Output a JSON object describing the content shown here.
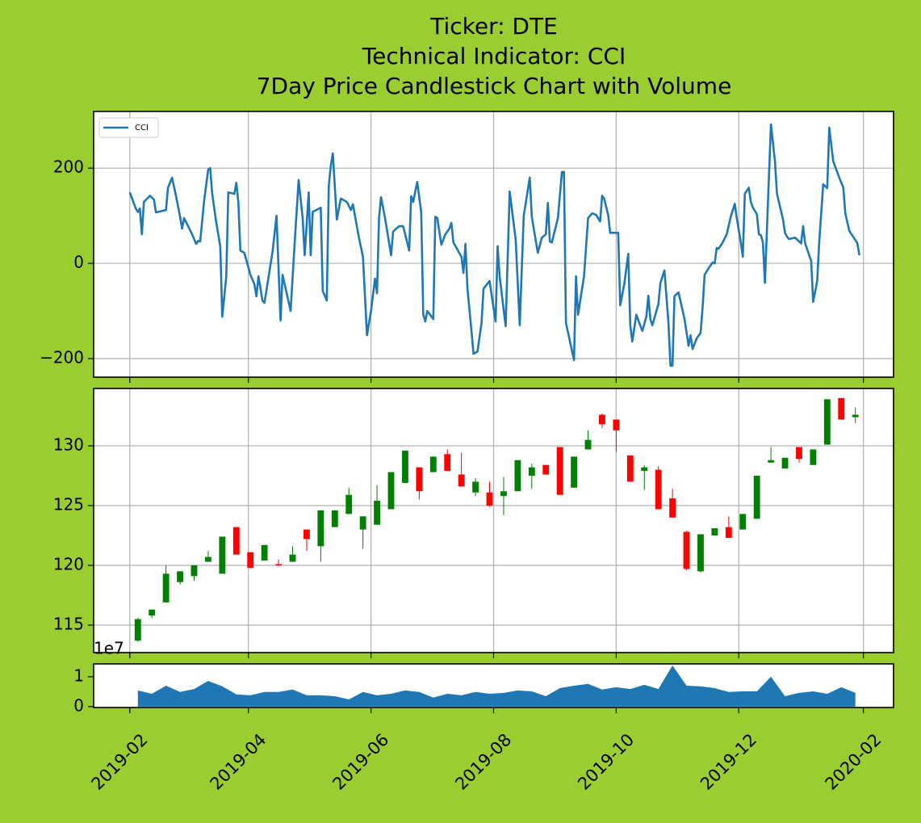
{
  "chart_data": [
    {
      "type": "line",
      "title": "Ticker: DTE\nTechnical Indicator: CCI\n7Day Price Candlestick Chart with Volume",
      "x": [
        "2019-02-01",
        "2019-02-04",
        "2019-02-05",
        "2019-02-06",
        "2019-02-07",
        "2019-02-08",
        "2019-02-11",
        "2019-02-13",
        "2019-02-14",
        "2019-02-19",
        "2019-02-20",
        "2019-02-22",
        "2019-02-24",
        "2019-02-26",
        "2019-02-27",
        "2019-02-28",
        "2019-03-02",
        "2019-03-04",
        "2019-03-06",
        "2019-03-07",
        "2019-03-08",
        "2019-03-10",
        "2019-03-12",
        "2019-03-13",
        "2019-03-14",
        "2019-03-16",
        "2019-03-18",
        "2019-03-19",
        "2019-03-21",
        "2019-03-22",
        "2019-03-25",
        "2019-03-26",
        "2019-03-27",
        "2019-03-28",
        "2019-03-30",
        "2019-04-02",
        "2019-04-04",
        "2019-04-05",
        "2019-04-06",
        "2019-04-08",
        "2019-04-09",
        "2019-04-13",
        "2019-04-15",
        "2019-04-17",
        "2019-04-18",
        "2019-04-22",
        "2019-04-24",
        "2019-04-26",
        "2019-04-28",
        "2019-04-29",
        "2019-05-01",
        "2019-05-02",
        "2019-05-03",
        "2019-05-07",
        "2019-05-08",
        "2019-05-10",
        "2019-05-11",
        "2019-05-12",
        "2019-05-13",
        "2019-05-15",
        "2019-05-17",
        "2019-05-20",
        "2019-05-22",
        "2019-05-23",
        "2019-05-26",
        "2019-05-28",
        "2019-05-30",
        "2019-06-01",
        "2019-06-03",
        "2019-06-04",
        "2019-06-05",
        "2019-06-06",
        "2019-06-08",
        "2019-06-11",
        "2019-06-12",
        "2019-06-13",
        "2019-06-15",
        "2019-06-17",
        "2019-06-20",
        "2019-06-21",
        "2019-06-22",
        "2019-06-24",
        "2019-06-26",
        "2019-06-27",
        "2019-06-28",
        "2019-06-29",
        "2019-07-02",
        "2019-07-03",
        "2019-07-04",
        "2019-07-06",
        "2019-07-08",
        "2019-07-10",
        "2019-07-11",
        "2019-07-12",
        "2019-07-16",
        "2019-07-17",
        "2019-07-18",
        "2019-07-19",
        "2019-07-21",
        "2019-07-22",
        "2019-07-24",
        "2019-07-26",
        "2019-07-27",
        "2019-07-30",
        "2019-08-02",
        "2019-08-03",
        "2019-08-04",
        "2019-08-07",
        "2019-08-09",
        "2019-08-12",
        "2019-08-14",
        "2019-08-16",
        "2019-08-19",
        "2019-08-20",
        "2019-08-23",
        "2019-08-25",
        "2019-08-27",
        "2019-08-28",
        "2019-08-29",
        "2019-08-30",
        "2019-09-02",
        "2019-09-04",
        "2019-09-05",
        "2019-09-06",
        "2019-09-10",
        "2019-09-11",
        "2019-09-12",
        "2019-09-15",
        "2019-09-17",
        "2019-09-19",
        "2019-09-21",
        "2019-09-23",
        "2019-09-24",
        "2019-09-25",
        "2019-09-27",
        "2019-09-28",
        "2019-10-02",
        "2019-10-03",
        "2019-10-05",
        "2019-10-07",
        "2019-10-08",
        "2019-10-09",
        "2019-10-11",
        "2019-10-14",
        "2019-10-16",
        "2019-10-17",
        "2019-10-18",
        "2019-10-19",
        "2019-10-22",
        "2019-10-23",
        "2019-10-25",
        "2019-10-27",
        "2019-10-28",
        "2019-10-29",
        "2019-10-30",
        "2019-11-01",
        "2019-11-04",
        "2019-11-06",
        "2019-11-07",
        "2019-11-08",
        "2019-11-10",
        "2019-11-12",
        "2019-11-13",
        "2019-11-14",
        "2019-11-16",
        "2019-11-18",
        "2019-11-19",
        "2019-11-20",
        "2019-11-21",
        "2019-11-23",
        "2019-11-25",
        "2019-11-27",
        "2019-11-29",
        "2019-11-30",
        "2019-12-02",
        "2019-12-03",
        "2019-12-04",
        "2019-12-06",
        "2019-12-07",
        "2019-12-08",
        "2019-12-10",
        "2019-12-11",
        "2019-12-12",
        "2019-12-13",
        "2019-12-14",
        "2019-12-16",
        "2019-12-17",
        "2019-12-19",
        "2019-12-20",
        "2019-12-23",
        "2019-12-24",
        "2019-12-25",
        "2019-12-26",
        "2019-12-29",
        "2020-01-01",
        "2020-01-02",
        "2020-01-03",
        "2020-01-06",
        "2020-01-07",
        "2020-01-09",
        "2020-01-10",
        "2020-01-12",
        "2020-01-14",
        "2020-01-15",
        "2020-01-17",
        "2020-01-20",
        "2020-01-22",
        "2020-01-23",
        "2020-01-25",
        "2020-01-28",
        "2020-01-29",
        "2020-01-30"
      ],
      "series": [
        {
          "name": "CCI",
          "color": "#1f77b4",
          "values": [
            149,
            115,
            108,
            115,
            61,
            129,
            142,
            134,
            107,
            112,
            159,
            180,
            141,
            98,
            73,
            95,
            78,
            61,
            41,
            47,
            46,
            132,
            197,
            200,
            146,
            86,
            36,
            -112,
            -27,
            149,
            146,
            169,
            129,
            27,
            22,
            -24,
            -44,
            -69,
            -27,
            -78,
            -83,
            24,
            100,
            -120,
            -24,
            -100,
            41,
            175,
            95,
            17,
            149,
            17,
            108,
            117,
            -58,
            -78,
            163,
            205,
            231,
            92,
            136,
            129,
            112,
            124,
            54,
            14,
            -151,
            -100,
            -32,
            -63,
            95,
            139,
            95,
            17,
            66,
            71,
            78,
            78,
            27,
            141,
            129,
            171,
            107,
            -107,
            -122,
            -100,
            -117,
            98,
            95,
            39,
            61,
            73,
            85,
            44,
            14,
            -20,
            41,
            -53,
            -142,
            -190,
            -185,
            -125,
            -53,
            -37,
            -122,
            36,
            -27,
            -132,
            151,
            49,
            -130,
            100,
            180,
            98,
            22,
            54,
            61,
            127,
            46,
            44,
            95,
            192,
            192,
            -125,
            -203,
            -27,
            -108,
            -27,
            95,
            105,
            102,
            88,
            142,
            136,
            102,
            64,
            64,
            -88,
            -44,
            20,
            -130,
            -164,
            -108,
            -142,
            -112,
            -68,
            -117,
            -130,
            -85,
            -41,
            -15,
            -125,
            -215,
            -215,
            -69,
            -61,
            -117,
            -173,
            -151,
            -180,
            -158,
            -146,
            -92,
            -24,
            -10,
            2,
            0,
            32,
            31,
            44,
            61,
            98,
            125,
            95,
            44,
            14,
            146,
            159,
            129,
            117,
            103,
            61,
            59,
            44,
            -41,
            183,
            292,
            214,
            146,
            92,
            64,
            56,
            51,
            54,
            42,
            78,
            42,
            5,
            -81,
            -37,
            44,
            166,
            158,
            285,
            214,
            180,
            159,
            105,
            68,
            49,
            42,
            17
          ]
        }
      ],
      "xlim": [
        "2019-01-14",
        "2020-02-16"
      ],
      "ylim": [
        -239,
        319
      ],
      "yticks": [
        {
          "value": -200,
          "label": "−200"
        },
        0,
        200
      ],
      "grid": true,
      "legend": "upper left"
    },
    {
      "type": "candlestick",
      "x": [
        "2019-02-05",
        "2019-02-12",
        "2019-02-19",
        "2019-02-26",
        "2019-03-05",
        "2019-03-12",
        "2019-03-19",
        "2019-03-26",
        "2019-04-02",
        "2019-04-09",
        "2019-04-16",
        "2019-04-23",
        "2019-04-30",
        "2019-05-07",
        "2019-05-14",
        "2019-05-21",
        "2019-05-28",
        "2019-06-04",
        "2019-06-11",
        "2019-06-18",
        "2019-06-25",
        "2019-07-02",
        "2019-07-09",
        "2019-07-16",
        "2019-07-23",
        "2019-07-30",
        "2019-08-06",
        "2019-08-13",
        "2019-08-20",
        "2019-08-27",
        "2019-09-03",
        "2019-09-10",
        "2019-09-17",
        "2019-09-24",
        "2019-10-01",
        "2019-10-08",
        "2019-10-15",
        "2019-10-22",
        "2019-10-29",
        "2019-11-05",
        "2019-11-12",
        "2019-11-19",
        "2019-11-26",
        "2019-12-03",
        "2019-12-10",
        "2019-12-17",
        "2019-12-24",
        "2019-12-31",
        "2020-01-07",
        "2020-01-14",
        "2020-01-21",
        "2020-01-28"
      ],
      "open": [
        113.7,
        115.8,
        116.9,
        118.6,
        119.1,
        120.3,
        119.3,
        123.2,
        121.1,
        120.4,
        120.1,
        120.3,
        123.0,
        121.6,
        123.2,
        124.3,
        123.0,
        123.4,
        124.7,
        126.9,
        128.2,
        127.8,
        129.3,
        127.6,
        126.1,
        126.1,
        125.8,
        126.2,
        127.5,
        128.4,
        129.9,
        126.5,
        129.7,
        132.6,
        132.2,
        129.2,
        127.9,
        128.0,
        125.6,
        122.8,
        119.5,
        122.5,
        123.2,
        123.0,
        123.9,
        128.6,
        128.1,
        129.9,
        128.4,
        130.1,
        134.0,
        132.4
      ],
      "high": [
        115.6,
        116.3,
        120.0,
        119.5,
        120.0,
        121.2,
        122.4,
        123.2,
        121.1,
        121.7,
        120.5,
        121.6,
        123.0,
        124.6,
        124.6,
        126.5,
        124.1,
        126.7,
        127.8,
        129.6,
        128.2,
        129.1,
        129.7,
        129.4,
        127.3,
        127.0,
        127.4,
        128.8,
        128.5,
        128.4,
        129.9,
        129.1,
        131.3,
        132.7,
        132.2,
        129.2,
        128.4,
        128.3,
        126.4,
        122.9,
        122.6,
        123.1,
        124.1,
        124.3,
        127.5,
        129.9,
        129.0,
        129.9,
        129.7,
        133.9,
        134.0,
        133.2
      ],
      "low": [
        113.6,
        115.6,
        116.9,
        118.4,
        118.7,
        120.3,
        119.3,
        120.9,
        119.7,
        120.4,
        119.9,
        120.3,
        121.2,
        120.3,
        123.2,
        124.3,
        121.4,
        123.4,
        124.7,
        126.9,
        125.5,
        127.8,
        127.9,
        126.6,
        125.8,
        124.9,
        124.2,
        126.2,
        126.4,
        127.6,
        125.9,
        126.5,
        129.7,
        131.5,
        129.5,
        127.0,
        126.3,
        124.7,
        124.0,
        119.6,
        119.4,
        122.5,
        122.3,
        123.0,
        123.9,
        128.6,
        128.1,
        128.6,
        128.4,
        130.1,
        132.2,
        131.9
      ],
      "close": [
        115.5,
        116.3,
        119.3,
        119.5,
        120.0,
        120.7,
        122.4,
        120.9,
        119.8,
        121.7,
        120.0,
        120.9,
        122.2,
        124.6,
        124.6,
        125.9,
        124.1,
        125.4,
        127.8,
        129.6,
        126.2,
        129.1,
        127.9,
        126.6,
        127.0,
        125.0,
        126.2,
        128.8,
        128.2,
        127.6,
        125.9,
        129.1,
        130.5,
        131.8,
        131.3,
        127.0,
        128.2,
        124.7,
        124.0,
        119.7,
        122.6,
        123.1,
        122.3,
        124.3,
        127.5,
        128.8,
        129.0,
        128.9,
        129.7,
        133.9,
        132.2,
        132.6
      ],
      "up_color": "green",
      "down_color": "red",
      "xlim": [
        "2019-01-14",
        "2020-02-16"
      ],
      "ylim": [
        112.7,
        134.8
      ],
      "yticks": [
        115,
        120,
        125,
        130
      ],
      "grid": true
    },
    {
      "type": "area",
      "x": [
        "2019-02-05",
        "2019-02-12",
        "2019-02-19",
        "2019-02-26",
        "2019-03-05",
        "2019-03-12",
        "2019-03-19",
        "2019-03-26",
        "2019-04-02",
        "2019-04-09",
        "2019-04-16",
        "2019-04-23",
        "2019-04-30",
        "2019-05-07",
        "2019-05-14",
        "2019-05-21",
        "2019-05-28",
        "2019-06-04",
        "2019-06-11",
        "2019-06-18",
        "2019-06-25",
        "2019-07-02",
        "2019-07-09",
        "2019-07-16",
        "2019-07-23",
        "2019-07-30",
        "2019-08-06",
        "2019-08-13",
        "2019-08-20",
        "2019-08-27",
        "2019-09-03",
        "2019-09-10",
        "2019-09-17",
        "2019-09-24",
        "2019-10-01",
        "2019-10-08",
        "2019-10-15",
        "2019-10-22",
        "2019-10-29",
        "2019-11-05",
        "2019-11-12",
        "2019-11-19",
        "2019-11-26",
        "2019-12-03",
        "2019-12-10",
        "2019-12-17",
        "2019-12-24",
        "2019-12-31",
        "2020-01-07",
        "2020-01-14",
        "2020-01-21",
        "2020-01-28"
      ],
      "values": [
        0.54,
        0.43,
        0.7,
        0.49,
        0.59,
        0.86,
        0.68,
        0.41,
        0.38,
        0.49,
        0.49,
        0.57,
        0.38,
        0.38,
        0.35,
        0.24,
        0.49,
        0.38,
        0.43,
        0.54,
        0.49,
        0.3,
        0.43,
        0.38,
        0.49,
        0.43,
        0.46,
        0.54,
        0.51,
        0.35,
        0.62,
        0.7,
        0.76,
        0.57,
        0.65,
        0.59,
        0.73,
        0.59,
        1.38,
        0.7,
        0.68,
        0.62,
        0.49,
        0.51,
        0.51,
        1.0,
        0.35,
        0.46,
        0.51,
        0.43,
        0.65,
        0.46
      ],
      "color": "#1f77b4",
      "offset_label": "1e7",
      "xlim": [
        "2019-01-14",
        "2020-02-16"
      ],
      "ylim": [
        -0.03,
        1.43
      ],
      "yticks": [
        0,
        1
      ],
      "xticks": [
        "2019-02",
        "2019-04",
        "2019-06",
        "2019-08",
        "2019-10",
        "2019-12",
        "2020-02"
      ],
      "grid": false
    }
  ]
}
